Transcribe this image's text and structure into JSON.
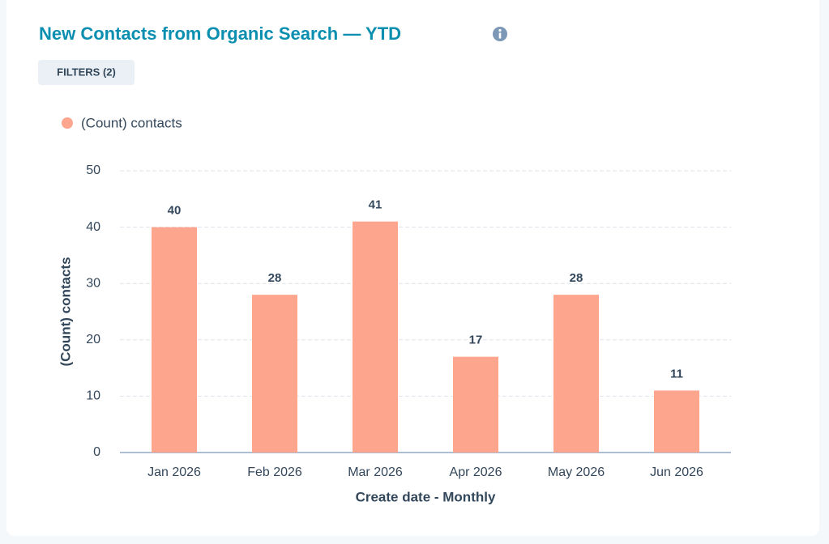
{
  "chart_data": {
    "type": "bar",
    "title": "New Contacts from Organic Search — YTD",
    "filter_button": "FILTERS (2)",
    "categories": [
      "Jan 2026",
      "Feb 2026",
      "Mar 2026",
      "Apr 2026",
      "May 2026",
      "Jun 2026"
    ],
    "series": [
      {
        "name": "(Count) contacts",
        "color": "#fea58e",
        "values": [
          40,
          28,
          41,
          17,
          28,
          11
        ]
      }
    ],
    "y_label": "(Count) contacts",
    "x_label": "Create date - Monthly",
    "ylim": [
      0,
      50
    ],
    "yticks": [
      0,
      10,
      20,
      30,
      40,
      50
    ],
    "grid": true
  }
}
